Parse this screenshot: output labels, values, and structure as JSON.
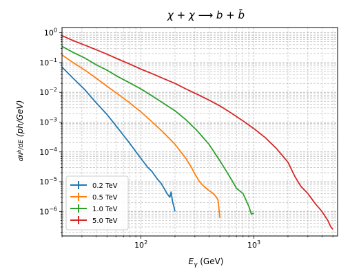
{
  "chart_data": {
    "type": "line",
    "title": "χ + χ ⟶ b + b̄",
    "xlabel": "E_γ (GeV)",
    "ylabel": "dN_γ^b/dE  (ph/GeV)",
    "xscale": "log",
    "yscale": "log",
    "xlim": [
      20,
      5500
    ],
    "ylim": [
      1.5e-07,
      1.5
    ],
    "grid": true,
    "legend_position": "lower-left",
    "x_ticks": [
      {
        "value": 100,
        "base": "10",
        "exp": "2"
      },
      {
        "value": 1000,
        "base": "10",
        "exp": "3"
      }
    ],
    "y_ticks": [
      {
        "value": 1,
        "base": "10",
        "exp": "0"
      },
      {
        "value": 0.1,
        "base": "10",
        "exp": "−1"
      },
      {
        "value": 0.01,
        "base": "10",
        "exp": "−2"
      },
      {
        "value": 0.001,
        "base": "10",
        "exp": "−3"
      },
      {
        "value": 0.0001,
        "base": "10",
        "exp": "−4"
      },
      {
        "value": 1e-05,
        "base": "10",
        "exp": "−5"
      },
      {
        "value": 1e-06,
        "base": "10",
        "exp": "−6"
      }
    ],
    "series": [
      {
        "name": "0.2 TeV",
        "color": "#1f77b4",
        "points": [
          [
            20,
            0.07
          ],
          [
            25,
            0.03
          ],
          [
            32,
            0.012
          ],
          [
            40,
            0.0045
          ],
          [
            50,
            0.0018
          ],
          [
            63,
            0.0006
          ],
          [
            79,
            0.0002
          ],
          [
            100,
            6e-05
          ],
          [
            115,
            3e-05
          ],
          [
            125,
            2.2e-05
          ],
          [
            140,
            1.2e-05
          ],
          [
            150,
            9e-06
          ],
          [
            160,
            6e-06
          ],
          [
            170,
            4e-06
          ],
          [
            180,
            3e-06
          ],
          [
            185,
            4.5e-06
          ],
          [
            190,
            2.2e-06
          ],
          [
            195,
            1.5e-06
          ],
          [
            200,
            1e-06
          ]
        ]
      },
      {
        "name": "0.5 TeV",
        "color": "#ff7f0e",
        "points": [
          [
            20,
            0.18
          ],
          [
            25,
            0.1
          ],
          [
            32,
            0.055
          ],
          [
            40,
            0.03
          ],
          [
            50,
            0.016
          ],
          [
            63,
            0.0085
          ],
          [
            79,
            0.0045
          ],
          [
            100,
            0.0022
          ],
          [
            126,
            0.001
          ],
          [
            158,
            0.00045
          ],
          [
            200,
            0.00018
          ],
          [
            250,
            6e-05
          ],
          [
            280,
            3e-05
          ],
          [
            300,
            1.8e-05
          ],
          [
            330,
            1e-05
          ],
          [
            360,
            7e-06
          ],
          [
            400,
            5e-06
          ],
          [
            430,
            4.2e-06
          ],
          [
            460,
            3.2e-06
          ],
          [
            480,
            2.5e-06
          ],
          [
            500,
            6e-07
          ]
        ]
      },
      {
        "name": "1.0 TeV",
        "color": "#2ca02c",
        "points": [
          [
            20,
            0.35
          ],
          [
            25,
            0.22
          ],
          [
            32,
            0.14
          ],
          [
            40,
            0.085
          ],
          [
            50,
            0.055
          ],
          [
            63,
            0.033
          ],
          [
            79,
            0.021
          ],
          [
            100,
            0.013
          ],
          [
            126,
            0.0075
          ],
          [
            158,
            0.0043
          ],
          [
            200,
            0.0024
          ],
          [
            250,
            0.0012
          ],
          [
            316,
            0.0005
          ],
          [
            400,
            0.00018
          ],
          [
            500,
            5e-05
          ],
          [
            560,
            2.5e-05
          ],
          [
            630,
            1.2e-05
          ],
          [
            700,
            6e-06
          ],
          [
            800,
            4e-06
          ],
          [
            900,
            1.5e-06
          ],
          [
            950,
            8e-07
          ],
          [
            1000,
            9e-07
          ]
        ]
      },
      {
        "name": "5.0 TeV",
        "color": "#d62728",
        "points": [
          [
            20,
            0.8
          ],
          [
            25,
            0.55
          ],
          [
            32,
            0.38
          ],
          [
            40,
            0.27
          ],
          [
            50,
            0.19
          ],
          [
            63,
            0.13
          ],
          [
            79,
            0.09
          ],
          [
            100,
            0.06
          ],
          [
            126,
            0.042
          ],
          [
            158,
            0.029
          ],
          [
            200,
            0.02
          ],
          [
            250,
            0.013
          ],
          [
            316,
            0.0085
          ],
          [
            400,
            0.0055
          ],
          [
            500,
            0.0035
          ],
          [
            630,
            0.002
          ],
          [
            800,
            0.0011
          ],
          [
            1000,
            0.0006
          ],
          [
            1260,
            0.0003
          ],
          [
            1580,
            0.00013
          ],
          [
            2000,
            4.5e-05
          ],
          [
            2300,
            1.5e-05
          ],
          [
            2600,
            7e-06
          ],
          [
            3000,
            4e-06
          ],
          [
            3500,
            1.8e-06
          ],
          [
            4000,
            1e-06
          ],
          [
            4500,
            5e-07
          ],
          [
            4800,
            3e-07
          ],
          [
            5000,
            2.5e-07
          ]
        ]
      }
    ]
  }
}
